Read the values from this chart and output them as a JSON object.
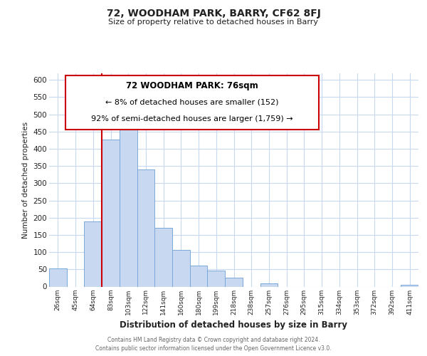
{
  "title": "72, WOODHAM PARK, BARRY, CF62 8FJ",
  "subtitle": "Size of property relative to detached houses in Barry",
  "xlabel": "Distribution of detached houses by size in Barry",
  "ylabel": "Number of detached properties",
  "bar_color": "#c8d8f0",
  "bar_edge_color": "#7aa8d8",
  "redline_color": "#cc0000",
  "annotation_box_edge": "#cc0000",
  "categories": [
    "26sqm",
    "45sqm",
    "64sqm",
    "83sqm",
    "103sqm",
    "122sqm",
    "141sqm",
    "160sqm",
    "180sqm",
    "199sqm",
    "218sqm",
    "238sqm",
    "257sqm",
    "276sqm",
    "295sqm",
    "315sqm",
    "334sqm",
    "353sqm",
    "372sqm",
    "392sqm",
    "411sqm"
  ],
  "values": [
    52,
    0,
    190,
    427,
    472,
    340,
    170,
    107,
    62,
    47,
    25,
    0,
    10,
    0,
    0,
    0,
    0,
    0,
    0,
    0,
    5
  ],
  "redline_x": 2.5,
  "ylim": [
    0,
    620
  ],
  "yticks": [
    0,
    50,
    100,
    150,
    200,
    250,
    300,
    350,
    400,
    450,
    500,
    550,
    600
  ],
  "annotation_text_line1": "72 WOODHAM PARK: 76sqm",
  "annotation_text_line2": "← 8% of detached houses are smaller (152)",
  "annotation_text_line3": "92% of semi-detached houses are larger (1,759) →",
  "footer_line1": "Contains HM Land Registry data © Crown copyright and database right 2024.",
  "footer_line2": "Contains public sector information licensed under the Open Government Licence v3.0.",
  "background_color": "#ffffff",
  "grid_color": "#c8d8f0"
}
